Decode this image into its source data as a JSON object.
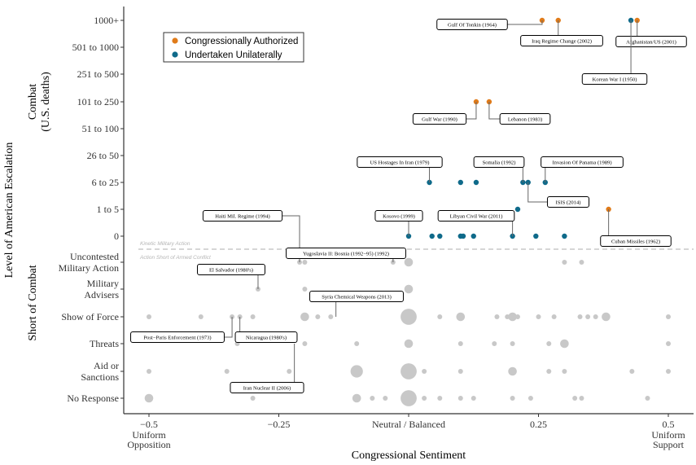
{
  "chart_data": {
    "type": "scatter",
    "xlabel": "Congressional Sentiment",
    "ylabel": "Level of American Escalation",
    "x_range": [
      -0.55,
      0.55
    ],
    "x_ticks": [
      {
        "value": -0.5,
        "label": "−0.5",
        "sublabel": "Uniform\nOpposition"
      },
      {
        "value": -0.25,
        "label": "−0.25",
        "sublabel": ""
      },
      {
        "value": 0.0,
        "label": "Neutral / Balanced",
        "sublabel": ""
      },
      {
        "value": 0.25,
        "label": "0.25",
        "sublabel": ""
      },
      {
        "value": 0.5,
        "label": "0.5",
        "sublabel": "Uniform\nSupport"
      }
    ],
    "y_levels": [
      "No Response",
      "Aid or\nSanctions",
      "Threats",
      "Show of Force",
      "Military\nAdvisers",
      "Uncontested\nMilitary Action",
      "0",
      "1 to 5",
      "6 to 25",
      "26 to 50",
      "51 to 100",
      "101 to 250",
      "251 to 500",
      "501 to 1000",
      "1000+"
    ],
    "band_labels": {
      "combat": "Combat\n(U.S. deaths)",
      "short_of_combat": "Short of Combat"
    },
    "divider_labels": {
      "above": "Kinetic Military Action",
      "below": "Action Short of Armed Conflict"
    },
    "legend": {
      "placement": "top-left",
      "entries": [
        {
          "name": "Congressionally Authorized",
          "color": "#E07B1A"
        },
        {
          "name": "Undertaken Unilaterally",
          "color": "#0F6A8A"
        }
      ]
    },
    "colors": {
      "authorized": "#E07B1A",
      "unilateral": "#0F6A8A",
      "non_combat": "#C8C8C8"
    },
    "series": [
      {
        "name": "Congressionally Authorized",
        "points": [
          {
            "x": 0.257,
            "level": "1000+"
          },
          {
            "x": 0.288,
            "level": "1000+"
          },
          {
            "x": 0.44,
            "level": "1000+"
          },
          {
            "x": 0.13,
            "level": "101 to 250"
          },
          {
            "x": 0.155,
            "level": "101 to 250"
          },
          {
            "x": 0.385,
            "level": "1 to 5"
          }
        ]
      },
      {
        "name": "Undertaken Unilaterally",
        "points": [
          {
            "x": 0.428,
            "level": "1000+"
          },
          {
            "x": 0.04,
            "level": "6 to 25"
          },
          {
            "x": 0.1,
            "level": "6 to 25"
          },
          {
            "x": 0.13,
            "level": "6 to 25"
          },
          {
            "x": 0.22,
            "level": "6 to 25"
          },
          {
            "x": 0.23,
            "level": "6 to 25"
          },
          {
            "x": 0.263,
            "level": "6 to 25"
          },
          {
            "x": 0.21,
            "level": "1 to 5"
          },
          {
            "x": 0.0,
            "level": "0"
          },
          {
            "x": 0.045,
            "level": "0"
          },
          {
            "x": 0.06,
            "level": "0"
          },
          {
            "x": 0.1,
            "level": "0"
          },
          {
            "x": 0.105,
            "level": "0"
          },
          {
            "x": 0.125,
            "level": "0"
          },
          {
            "x": 0.2,
            "level": "0"
          },
          {
            "x": 0.245,
            "level": "0"
          },
          {
            "x": 0.3,
            "level": "0"
          }
        ]
      },
      {
        "name": "",
        "points": [
          {
            "x": -0.21,
            "level": "Uncontested\nMilitary Action",
            "size": 1
          },
          {
            "x": -0.2,
            "level": "Uncontested\nMilitary Action",
            "size": 1
          },
          {
            "x": -0.03,
            "level": "Uncontested\nMilitary Action",
            "size": 1
          },
          {
            "x": 0.0,
            "level": "Uncontested\nMilitary Action",
            "size": 2
          },
          {
            "x": 0.3,
            "level": "Uncontested\nMilitary Action",
            "size": 1
          },
          {
            "x": 0.333,
            "level": "Uncontested\nMilitary Action",
            "size": 1
          },
          {
            "x": -0.29,
            "level": "Military\nAdvisers",
            "size": 1
          },
          {
            "x": -0.2,
            "level": "Military\nAdvisers",
            "size": 1
          },
          {
            "x": 0.0,
            "level": "Military\nAdvisers",
            "size": 2
          },
          {
            "x": -0.5,
            "level": "Show of Force",
            "size": 1
          },
          {
            "x": -0.4,
            "level": "Show of Force",
            "size": 1
          },
          {
            "x": -0.34,
            "level": "Show of Force",
            "size": 1
          },
          {
            "x": -0.325,
            "level": "Show of Force",
            "size": 1
          },
          {
            "x": -0.3,
            "level": "Show of Force",
            "size": 1
          },
          {
            "x": -0.2,
            "level": "Show of Force",
            "size": 2
          },
          {
            "x": -0.175,
            "level": "Show of Force",
            "size": 1
          },
          {
            "x": -0.15,
            "level": "Show of Force",
            "size": 1
          },
          {
            "x": 0.0,
            "level": "Show of Force",
            "size": 4
          },
          {
            "x": 0.06,
            "level": "Show of Force",
            "size": 1
          },
          {
            "x": 0.1,
            "level": "Show of Force",
            "size": 2
          },
          {
            "x": 0.17,
            "level": "Show of Force",
            "size": 1
          },
          {
            "x": 0.19,
            "level": "Show of Force",
            "size": 1
          },
          {
            "x": 0.2,
            "level": "Show of Force",
            "size": 2
          },
          {
            "x": 0.21,
            "level": "Show of Force",
            "size": 1
          },
          {
            "x": 0.25,
            "level": "Show of Force",
            "size": 1
          },
          {
            "x": 0.28,
            "level": "Show of Force",
            "size": 1
          },
          {
            "x": 0.33,
            "level": "Show of Force",
            "size": 1
          },
          {
            "x": 0.345,
            "level": "Show of Force",
            "size": 1
          },
          {
            "x": 0.36,
            "level": "Show of Force",
            "size": 1
          },
          {
            "x": 0.38,
            "level": "Show of Force",
            "size": 2
          },
          {
            "x": 0.5,
            "level": "Show of Force",
            "size": 1
          },
          {
            "x": -0.33,
            "level": "Threats",
            "size": 1
          },
          {
            "x": -0.2,
            "level": "Threats",
            "size": 1
          },
          {
            "x": -0.1,
            "level": "Threats",
            "size": 1
          },
          {
            "x": 0.0,
            "level": "Threats",
            "size": 2
          },
          {
            "x": 0.1,
            "level": "Threats",
            "size": 1
          },
          {
            "x": 0.165,
            "level": "Threats",
            "size": 1
          },
          {
            "x": 0.2,
            "level": "Threats",
            "size": 1
          },
          {
            "x": 0.27,
            "level": "Threats",
            "size": 1
          },
          {
            "x": 0.3,
            "level": "Threats",
            "size": 2
          },
          {
            "x": 0.5,
            "level": "Threats",
            "size": 1
          },
          {
            "x": -0.5,
            "level": "Aid or\nSanctions",
            "size": 1
          },
          {
            "x": -0.35,
            "level": "Aid or\nSanctions",
            "size": 1
          },
          {
            "x": -0.23,
            "level": "Aid or\nSanctions",
            "size": 1
          },
          {
            "x": -0.1,
            "level": "Aid or\nSanctions",
            "size": 3
          },
          {
            "x": 0.0,
            "level": "Aid or\nSanctions",
            "size": 4
          },
          {
            "x": 0.03,
            "level": "Aid or\nSanctions",
            "size": 1
          },
          {
            "x": 0.1,
            "level": "Aid or\nSanctions",
            "size": 1
          },
          {
            "x": 0.2,
            "level": "Aid or\nSanctions",
            "size": 2
          },
          {
            "x": 0.27,
            "level": "Aid or\nSanctions",
            "size": 1
          },
          {
            "x": 0.3,
            "level": "Aid or\nSanctions",
            "size": 1
          },
          {
            "x": 0.43,
            "level": "Aid or\nSanctions",
            "size": 1
          },
          {
            "x": 0.5,
            "level": "Aid or\nSanctions",
            "size": 1
          },
          {
            "x": -0.5,
            "level": "No Response",
            "size": 2
          },
          {
            "x": -0.3,
            "level": "No Response",
            "size": 1
          },
          {
            "x": -0.1,
            "level": "No Response",
            "size": 2
          },
          {
            "x": -0.07,
            "level": "No Response",
            "size": 1
          },
          {
            "x": -0.045,
            "level": "No Response",
            "size": 1
          },
          {
            "x": 0.0,
            "level": "No Response",
            "size": 4
          },
          {
            "x": 0.03,
            "level": "No Response",
            "size": 1
          },
          {
            "x": 0.06,
            "level": "No Response",
            "size": 1
          },
          {
            "x": 0.1,
            "level": "No Response",
            "size": 1
          },
          {
            "x": 0.125,
            "level": "No Response",
            "size": 1
          },
          {
            "x": 0.2,
            "level": "No Response",
            "size": 1
          },
          {
            "x": 0.235,
            "level": "No Response",
            "size": 1
          },
          {
            "x": 0.32,
            "level": "No Response",
            "size": 1
          },
          {
            "x": 0.333,
            "level": "No Response",
            "size": 1
          },
          {
            "x": 0.46,
            "level": "No Response",
            "size": 1
          }
        ]
      }
    ],
    "annotations": [
      {
        "text": "Gulf Of Tonkin (1964)",
        "x": 0.257,
        "level": "1000+"
      },
      {
        "text": "Iraq Regime Change (2002)",
        "x": 0.288,
        "level": "1000+"
      },
      {
        "text": "Afghanistan/US (2001)",
        "x": 0.44,
        "level": "1000+"
      },
      {
        "text": "Korean War I (1950)",
        "x": 0.428,
        "level": "1000+"
      },
      {
        "text": "Gulf War (1990)",
        "x": 0.13,
        "level": "101 to 250"
      },
      {
        "text": "Lebanon (1983)",
        "x": 0.155,
        "level": "101 to 250"
      },
      {
        "text": "US Hostages In Iran (1979)",
        "x": 0.04,
        "level": "6 to 25"
      },
      {
        "text": "Somalia (1992)",
        "x": 0.22,
        "level": "6 to 25"
      },
      {
        "text": "Invasion Of Panama (1989)",
        "x": 0.263,
        "level": "6 to 25"
      },
      {
        "text": "ISIS (2014)",
        "x": 0.23,
        "level": "6 to 25"
      },
      {
        "text": "Haiti Mil. Regime (1994)",
        "x": -0.21,
        "level": "Uncontested\nMilitary Action"
      },
      {
        "text": "Kosovo (1999)",
        "x": 0.0,
        "level": "0"
      },
      {
        "text": "Libyan Civil War (2011)",
        "x": 0.2,
        "level": "0"
      },
      {
        "text": "Cuban Missiles (1962)",
        "x": 0.385,
        "level": "1 to 5"
      },
      {
        "text": "Yugoslavia II: Bosnia (1992−95) (1992)",
        "x": -0.03,
        "level": "Uncontested\nMilitary Action"
      },
      {
        "text": "El Salvador (1980's)",
        "x": -0.29,
        "level": "Military\nAdvisers"
      },
      {
        "text": "Syria Chemical Weapons (2013)",
        "x": -0.14,
        "level": "Show of Force"
      },
      {
        "text": "Post−Paris Enforcement (1973)",
        "x": -0.34,
        "level": "Show of Force"
      },
      {
        "text": "Nicaragua (1980's)",
        "x": -0.325,
        "level": "Show of Force"
      },
      {
        "text": "Iran Nuclear II (2006)",
        "x": -0.22,
        "level": "Threats"
      }
    ]
  }
}
